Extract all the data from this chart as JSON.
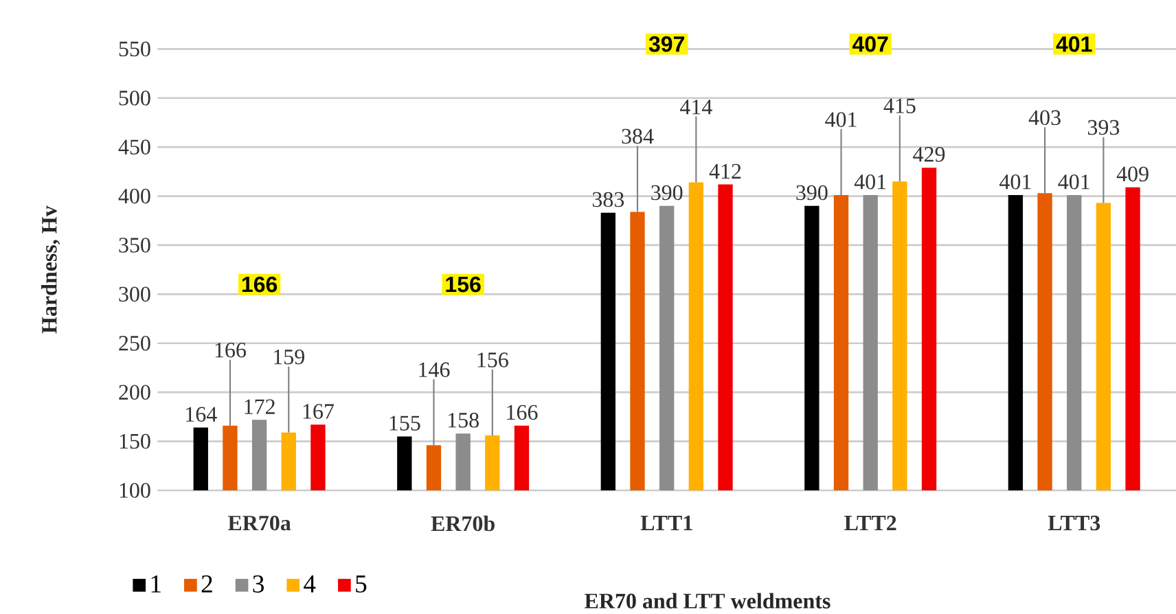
{
  "chart_data": {
    "type": "bar",
    "xlabel": "ER70 and LTT weldments",
    "ylabel": "Hardness, Hv",
    "categories": [
      "ER70a",
      "ER70b",
      "LTT1",
      "LTT2",
      "LTT3"
    ],
    "series": [
      {
        "name": "1",
        "color": "#000000",
        "values": [
          164,
          155,
          383,
          390,
          401
        ]
      },
      {
        "name": "2",
        "color": "#e65c00",
        "values": [
          166,
          146,
          384,
          401,
          403
        ]
      },
      {
        "name": "3",
        "color": "#8c8c8c",
        "values": [
          172,
          158,
          390,
          401,
          401
        ]
      },
      {
        "name": "4",
        "color": "#ffb000",
        "values": [
          159,
          156,
          414,
          415,
          393
        ]
      },
      {
        "name": "5",
        "color": "#f00000",
        "values": [
          167,
          166,
          412,
          429,
          409
        ]
      }
    ],
    "ylim": [
      100,
      550
    ],
    "yticks": [
      100,
      150,
      200,
      250,
      300,
      350,
      400,
      450,
      500,
      550
    ],
    "grid": "y",
    "legend": "bottom left",
    "data_labels": true,
    "annotations": [
      {
        "text": "166",
        "x": "ER70a",
        "y": 310
      },
      {
        "text": "156",
        "x": "ER70b",
        "y": 310
      },
      {
        "text": "397",
        "x": "LTT1",
        "y": 555
      },
      {
        "text": "407",
        "x": "LTT2",
        "y": 555
      },
      {
        "text": "401",
        "x": "LTT3",
        "y": 555
      }
    ]
  }
}
